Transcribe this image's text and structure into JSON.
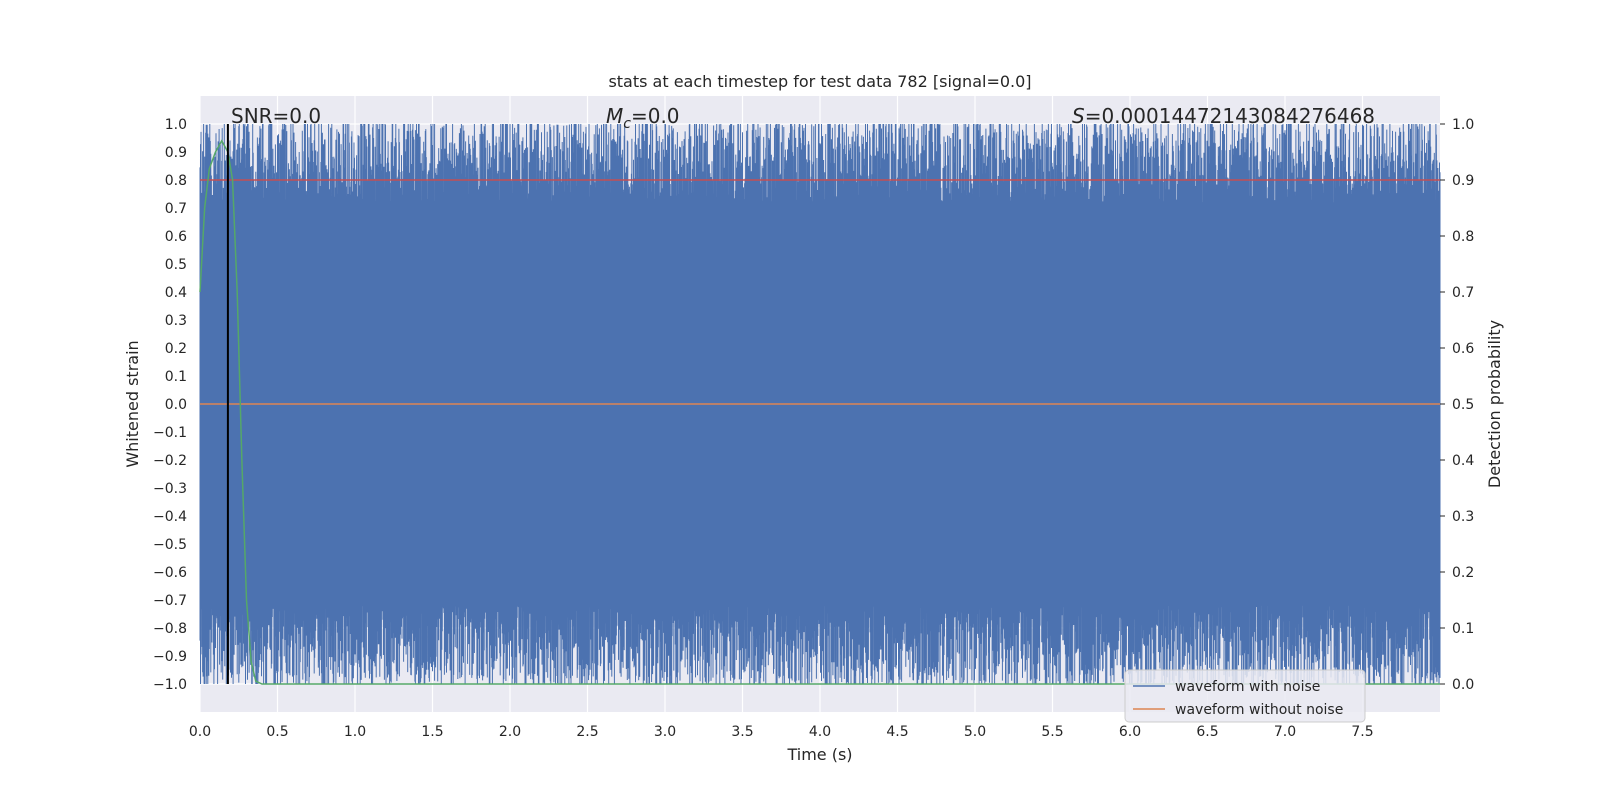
{
  "chart_data": {
    "type": "line",
    "title": "stats at each timestep for test data 782 [signal=0.0]",
    "xlabel": "Time (s)",
    "ylabel": "Whitened strain",
    "ylabel_right": "Detection probability",
    "xlim": [
      0.0,
      8.0
    ],
    "ylim": [
      -1.1,
      1.1
    ],
    "ylim_right": [
      -0.05,
      1.05
    ],
    "x_ticks": [
      0.0,
      0.5,
      1.0,
      1.5,
      2.0,
      2.5,
      3.0,
      3.5,
      4.0,
      4.5,
      5.0,
      5.5,
      6.0,
      6.5,
      7.0,
      7.5
    ],
    "x_tick_labels": [
      "0.0",
      "0.5",
      "1.0",
      "1.5",
      "2.0",
      "2.5",
      "3.0",
      "3.5",
      "4.0",
      "4.5",
      "5.0",
      "5.5",
      "6.0",
      "6.5",
      "7.0",
      "7.5"
    ],
    "y_ticks": [
      1.0,
      0.9,
      0.8,
      0.7,
      0.6,
      0.5,
      0.4,
      0.3,
      0.2,
      0.1,
      0.0,
      -0.1,
      -0.2,
      -0.3,
      -0.4,
      -0.5,
      -0.6,
      -0.7,
      -0.8,
      -0.9,
      -1.0
    ],
    "y_tick_labels": [
      "1.0",
      "0.9",
      "0.8",
      "0.7",
      "0.6",
      "0.5",
      "0.4",
      "0.3",
      "0.2",
      "0.1",
      "0.0",
      "−0.1",
      "−0.2",
      "−0.3",
      "−0.4",
      "−0.5",
      "−0.6",
      "−0.7",
      "−0.8",
      "−0.9",
      "−1.0"
    ],
    "y_right_ticks": [
      1.0,
      0.9,
      0.8,
      0.7,
      0.6,
      0.5,
      0.4,
      0.3,
      0.2,
      0.1,
      0.0
    ],
    "y_right_tick_labels": [
      "1.0",
      "0.9",
      "0.8",
      "0.7",
      "0.6",
      "0.5",
      "0.4",
      "0.3",
      "0.2",
      "0.1",
      "0.0"
    ],
    "grid": true,
    "legend_position": "lower-right",
    "series": [
      {
        "name": "waveform with noise",
        "color": "#4c72b0",
        "axis": "left",
        "description_values": "noise filling approximately -1.0 to 1.0 over 0.0-8.0 s"
      },
      {
        "name": "waveform without noise",
        "color": "#dd8452",
        "axis": "left",
        "x": [
          0.0,
          8.0
        ],
        "y": [
          0.0,
          0.0
        ]
      },
      {
        "color": "#55a868",
        "axis": "right",
        "x": [
          0.0,
          0.03,
          0.06,
          0.1,
          0.14,
          0.18,
          0.21,
          0.24,
          0.27,
          0.3,
          0.33,
          0.36,
          0.4,
          8.0
        ],
        "y": [
          0.7,
          0.85,
          0.92,
          0.95,
          0.97,
          0.95,
          0.9,
          0.7,
          0.4,
          0.15,
          0.04,
          0.005,
          0.0,
          0.0
        ]
      },
      {
        "color": "#c44e52",
        "axis": "right",
        "x": [
          0.0,
          8.0
        ],
        "y": [
          0.9,
          0.9
        ]
      }
    ],
    "vertical_marker": {
      "x": 0.18,
      "color": "#000000"
    },
    "annotations": {
      "snr": "SNR=0.0",
      "mc_symbol": "M",
      "mc_subscript": "c",
      "mc_value": "=0.0",
      "s_symbol": "S",
      "s_value": "=0.00014472143084276468"
    }
  }
}
